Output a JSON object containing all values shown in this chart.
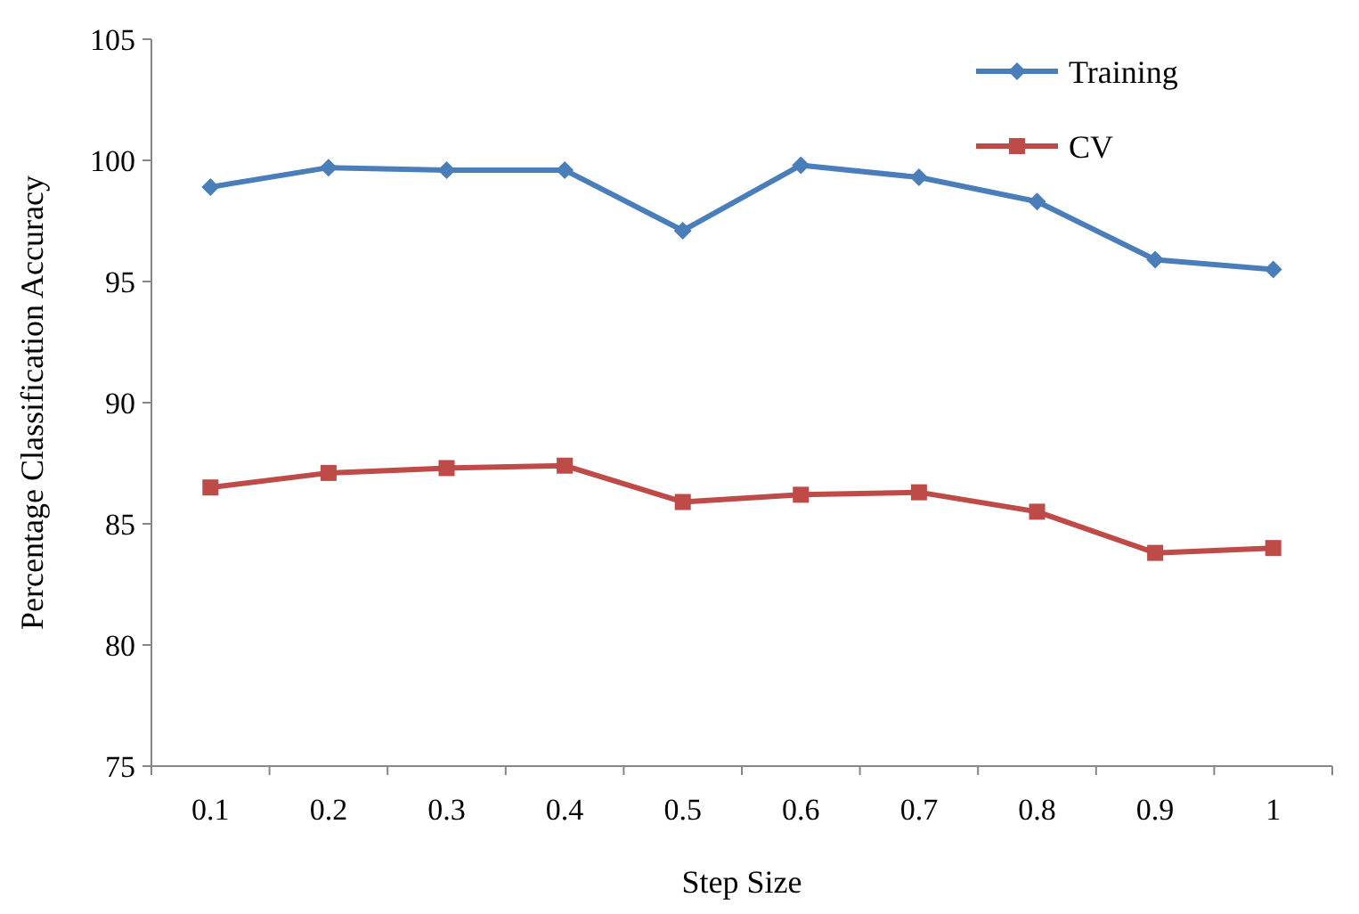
{
  "chart_data": {
    "type": "line",
    "xlabel": "Step Size",
    "ylabel": "Percentage Classification Accuracy",
    "categories": [
      "0.1",
      "0.2",
      "0.3",
      "0.4",
      "0.5",
      "0.6",
      "0.7",
      "0.8",
      "0.9",
      "1"
    ],
    "series": [
      {
        "name": "Training",
        "color": "#4a7ebb",
        "marker": "diamond",
        "values": [
          98.9,
          99.7,
          99.6,
          99.6,
          97.1,
          99.8,
          99.3,
          98.3,
          95.9,
          95.5
        ]
      },
      {
        "name": "CV",
        "color": "#be4b48",
        "marker": "square",
        "values": [
          86.5,
          87.1,
          87.3,
          87.4,
          85.9,
          86.2,
          86.3,
          85.5,
          83.8,
          84.0
        ]
      }
    ],
    "ylim": [
      75,
      105
    ],
    "yticks": [
      75,
      80,
      85,
      90,
      95,
      100,
      105
    ],
    "grid": false,
    "legend": "top right"
  }
}
